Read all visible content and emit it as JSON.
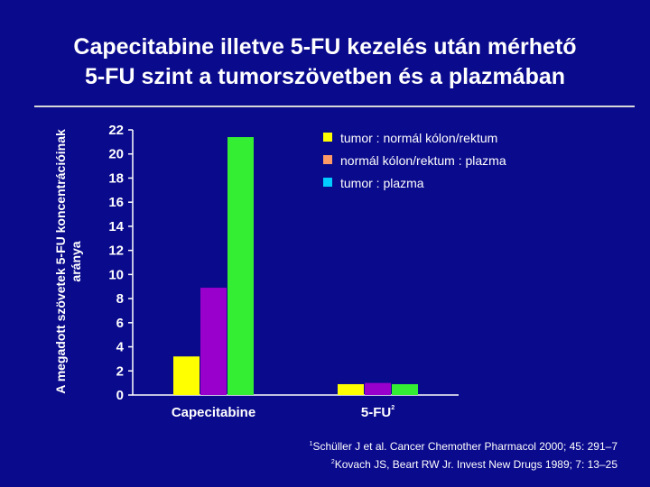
{
  "title": {
    "line1": "Capecitabine illetve 5-FU kezelés után mérhető",
    "line2": "5-FU szint a tumorszövetben és a plazmában"
  },
  "colors": {
    "background": "#0a0a8c",
    "rule": "#d8d8d8",
    "series": [
      "#ffff00",
      "#9900cc",
      "#33ee33"
    ],
    "legend_markers": [
      "#ffff00",
      "#ff9966",
      "#00ccff"
    ]
  },
  "chart_data": {
    "type": "bar",
    "ylabel": "A megadott szövetek 5-FU koncentrációinak aránya",
    "xlabel": "",
    "ylim": [
      0,
      22
    ],
    "yticks": [
      0,
      2,
      4,
      6,
      8,
      10,
      12,
      14,
      16,
      18,
      20,
      22
    ],
    "categories": [
      "Capecitabine",
      "5-FU"
    ],
    "category_superscripts": [
      "",
      "2"
    ],
    "series": [
      {
        "values": [
          3.2,
          0.9
        ]
      },
      {
        "values": [
          8.9,
          1.0
        ]
      },
      {
        "values": [
          21.4,
          0.9
        ]
      }
    ],
    "legend": [
      "tumor : normál kólon/rektum",
      "normál kólon/rektum : plazma",
      "tumor : plazma"
    ],
    "legend_position": "top-right",
    "grid": false
  },
  "references": [
    {
      "sup": "1",
      "text": "Schüller J et al. Cancer Chemother Pharmacol 2000; 45: 291–7"
    },
    {
      "sup": "2",
      "text": "Kovach JS, Beart RW Jr. Invest New Drugs 1989; 7: 13–25"
    }
  ]
}
